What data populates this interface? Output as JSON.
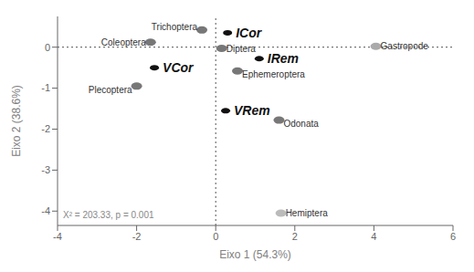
{
  "chart_data": {
    "type": "scatter",
    "xlabel": "Eixo 1 (54.3%)",
    "ylabel": "Eixo 2 (38.6%)",
    "annotation": "X² = 203.33, p = 0.001",
    "xlim": [
      -4,
      6
    ],
    "ylim": [
      -4.35,
      0.75
    ],
    "xticks": [
      -4,
      -2,
      0,
      2,
      4,
      6
    ],
    "yticks": [
      -4,
      -3,
      -2,
      -1,
      0
    ],
    "grid": false,
    "series": [
      {
        "labels": [
          "Trichoptera",
          "Coleoptera",
          "Diptera",
          "Plecoptera",
          "Ephemeroptera",
          "Gastropode",
          "Odonata",
          "Hemiptera"
        ],
        "x": [
          -0.35,
          -1.65,
          0.15,
          -2.0,
          0.55,
          4.05,
          1.6,
          1.65
        ],
        "y": [
          0.42,
          0.12,
          -0.03,
          -0.95,
          -0.58,
          0.02,
          -1.78,
          -4.05
        ],
        "colors": [
          "#777777",
          "#777777",
          "#777777",
          "#777777",
          "#777777",
          "#aaaaaa",
          "#777777",
          "#bbbbbb"
        ]
      },
      {
        "labels": [
          "ICor",
          "VCor",
          "IRem",
          "VRem"
        ],
        "x": [
          0.3,
          -1.55,
          1.1,
          0.25
        ],
        "y": [
          0.35,
          -0.5,
          -0.28,
          -1.55
        ],
        "color": "#111111"
      }
    ]
  }
}
